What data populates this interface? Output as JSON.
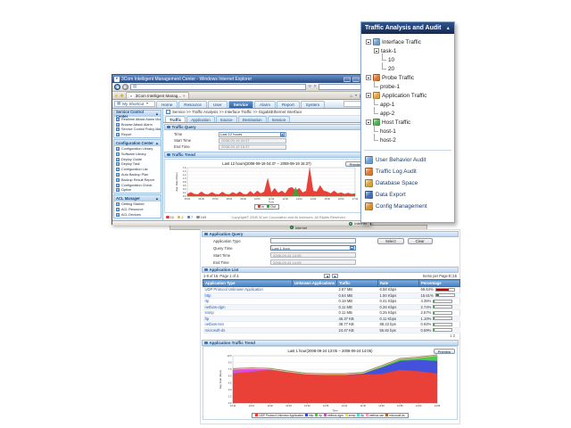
{
  "window": {
    "title": "3Com Intelligent Management Center - Windows Internet Explorer",
    "tab_title": "3Com Intelligent Manag...",
    "tab_close": "×",
    "shortcut_label": "My Shortcut",
    "nav_tabs": [
      {
        "label": "Home",
        "active": false
      },
      {
        "label": "Resource",
        "active": false
      },
      {
        "label": "User",
        "active": false
      },
      {
        "label": "Service",
        "active": true
      },
      {
        "label": "Alarm",
        "active": false
      },
      {
        "label": "Report",
        "active": false
      },
      {
        "label": "System",
        "active": false
      }
    ],
    "breadcrumb": "Service >> Traffic Analysis >> Interface Traffic >> GigabitEthernet Interface",
    "status_zone": "Internet"
  },
  "sidebar": {
    "panels": [
      {
        "title": "Service Control Center",
        "items": [
          "Realtime Attack Alarm Monitoring",
          "Browse Attack Alarm",
          "Service Control Policy Management",
          "Report"
        ]
      },
      {
        "title": "Configuration Center",
        "items": [
          "Configuration Library",
          "Software Library",
          "Deploy Guide",
          "Deploy Task",
          "Configuration List",
          "Auto Backup Plan",
          "Backup Result Report",
          "Configuration Check",
          "Option"
        ]
      },
      {
        "title": "ACL Manager",
        "items": [
          "Getting Started",
          "ACL Resource",
          "ACL Devices"
        ]
      }
    ]
  },
  "traffic_page": {
    "tabs": [
      {
        "label": "Traffic",
        "active": true
      },
      {
        "label": "Application",
        "active": false
      },
      {
        "label": "Source",
        "active": false
      },
      {
        "label": "Destination",
        "active": false
      },
      {
        "label": "Session",
        "active": false
      }
    ],
    "query_section_title": "Traffic Query",
    "fields": [
      {
        "label": "Time",
        "type": "select",
        "value": "Last 12 hours"
      },
      {
        "label": "Start Time",
        "type": "text",
        "value": "2008-09-19 04:37"
      },
      {
        "label": "End Time",
        "type": "text",
        "value": "2008-09-19 16:37"
      }
    ],
    "trend_section_title": "Traffic Trend",
    "preview_button": "Preview",
    "alarm_counts": [
      {
        "name": "critical",
        "color": "#d43c2f",
        "count": "16"
      },
      {
        "name": "major",
        "color": "#f2a93b",
        "count": "2"
      },
      {
        "name": "minor",
        "color": "#3f78c8",
        "count": "7"
      },
      {
        "name": "info",
        "color": "#8a8a8a",
        "count": "169"
      }
    ],
    "copyright": "Copyright© 2008 3Com Corporation and its licensors. All Rights Reserved."
  },
  "panel": {
    "title": "Traffic Analysis and Audit",
    "tree": [
      {
        "label": "Interface Traffic",
        "icon": "interface-traffic-icon",
        "color": "#6d9fd4",
        "children": [
          {
            "label": "task-1",
            "children": [
              {
                "label": "10"
              },
              {
                "label": "20"
              }
            ]
          }
        ]
      },
      {
        "label": "Probe Traffic",
        "icon": "probe-traffic-icon",
        "color": "#e2762a",
        "children": [
          {
            "label": "probe-1"
          }
        ]
      },
      {
        "label": "Application Traffic",
        "icon": "application-traffic-icon",
        "color": "#e8a23a",
        "children": [
          {
            "label": "app-1"
          },
          {
            "label": "app-2"
          }
        ]
      },
      {
        "label": "Host Traffic",
        "icon": "host-traffic-icon",
        "color": "#4fae4f",
        "children": [
          {
            "label": "host-1"
          },
          {
            "label": "host-2"
          }
        ]
      }
    ],
    "menu": [
      {
        "label": "User Behavior Audit",
        "icon": "user-behavior-audit-icon",
        "color": "#6d9fd4"
      },
      {
        "label": "Traffic Log Audit",
        "icon": "traffic-log-audit-icon",
        "color": "#e2762a"
      },
      {
        "label": "Database Space",
        "icon": "database-space-icon",
        "color": "#d9a23a"
      },
      {
        "label": "Data Export",
        "icon": "data-export-icon",
        "color": "#3f6fb7"
      },
      {
        "label": "Config Management",
        "icon": "config-management-icon",
        "color": "#d98f2a"
      }
    ]
  },
  "report": {
    "query_section_title": "Application Query",
    "app_type_label": "Application Type",
    "select_button": "Select",
    "clear_button": "Clear",
    "fields": [
      {
        "label": "Query Time",
        "type": "select",
        "value": "Last 1 hour"
      },
      {
        "label": "Start Time",
        "type": "text",
        "value": "2008-09-24 13:05"
      },
      {
        "label": "End Time",
        "type": "text",
        "value": "2008-09-24 14:05"
      }
    ],
    "list_section_title": "Application List",
    "pagination_left": "1-8 of 16. Page 1 of 2.",
    "items_per_page": "Items per Page:8 |15",
    "page_links": "1 2",
    "columns": [
      "Application Type",
      "Unknown Applications",
      "Traffic",
      "Rate",
      "Percentage"
    ],
    "rows": [
      {
        "app": "UDP Protocol Unknown Application",
        "unknown": "",
        "traffic": "2.87 MB",
        "rate": "6.58 Kbps",
        "pct": "69.64%",
        "pct_val": 69.64,
        "bar_color": "#c00000"
      },
      {
        "app": "http",
        "unknown": "",
        "traffic": "0.64 MB",
        "rate": "1.50 Kbps",
        "pct": "15.61%",
        "pct_val": 15.61,
        "bar_color": "#2e8b2e"
      },
      {
        "app": "rtp",
        "unknown": "",
        "traffic": "0.18 MB",
        "rate": "0.41 Kbps",
        "pct": "4.35%",
        "pct_val": 4.35,
        "bar_color": "#2e8b2e"
      },
      {
        "app": "netbios-dgm",
        "unknown": "",
        "traffic": "0.11 MB",
        "rate": "0.26 Kbps",
        "pct": "2.74%",
        "pct_val": 2.74,
        "bar_color": "#2e8b2e"
      },
      {
        "app": "snmp",
        "unknown": "",
        "traffic": "0.11 MB",
        "rate": "0.25 Kbps",
        "pct": "2.57%",
        "pct_val": 2.57,
        "bar_color": "#2e8b2e"
      },
      {
        "app": "ftp",
        "unknown": "",
        "traffic": "46.37 KB",
        "rate": "0.11 Kbps",
        "pct": "1.10%",
        "pct_val": 1.1,
        "bar_color": "#2e8b2e"
      },
      {
        "app": "netbios-ssn",
        "unknown": "",
        "traffic": "38.77 KB",
        "rate": "88.23 bps",
        "pct": "0.92%",
        "pct_val": 0.92,
        "bar_color": "#2e8b2e"
      },
      {
        "app": "microsoft-ds",
        "unknown": "",
        "traffic": "24.47 KB",
        "rate": "55.82 bps",
        "pct": "0.59%",
        "pct_val": 0.59,
        "bar_color": "#2e8b2e"
      }
    ],
    "trend_section_title": "Application Traffic Trend",
    "preview_button": "Preview"
  },
  "chart_data": [
    {
      "id": "traffic-trend",
      "type": "area",
      "title": "Last 12 hours(2008-09-19 04:37 -- 2008-09-19 16:37)",
      "xlabel": "Time",
      "ylabel": "Avg. Rate (Kbps)",
      "ylim": [
        0,
        1.6
      ],
      "y_ticks": [
        0.0,
        0.2,
        0.4,
        0.6,
        0.8,
        1.0,
        1.2,
        1.4,
        1.6
      ],
      "x_ticks": [
        "05:00",
        "06:00",
        "07:00",
        "08:00",
        "09:00",
        "10:00",
        "11:00",
        "12:00",
        "13:00",
        "14:00",
        "15:00",
        "16:00",
        "17:00"
      ],
      "grid": true,
      "legend_position": "bottom",
      "series": [
        {
          "name": "In",
          "color": "#e8372d",
          "values": [
            0.12,
            0.22,
            0.12,
            0.1,
            0.25,
            0.12,
            0.1,
            0.22,
            0.12,
            0.1,
            0.24,
            0.12,
            0.1,
            0.22,
            0.12,
            0.25,
            0.12,
            0.1,
            0.28,
            0.12,
            0.3,
            0.15,
            0.25,
            1.0,
            0.2,
            0.45,
            0.18,
            0.3,
            0.15,
            0.45,
            0.5,
            0.3,
            0.45,
            0.2,
            0.3,
            1.6,
            0.3,
            0.25,
            0.6,
            0.3,
            0.25,
            0.15,
            0.3,
            0.15,
            0.2,
            0.12,
            0.18,
            0.12,
            0.15
          ]
        },
        {
          "name": "Out",
          "color": "#3aa53a",
          "values": [
            0,
            0,
            0,
            0,
            0,
            0,
            0,
            0,
            0,
            0,
            0,
            0,
            0,
            0,
            0,
            0,
            0,
            0,
            0,
            0,
            0,
            0,
            0,
            0,
            0,
            0,
            0,
            0,
            0,
            0,
            0,
            0.5,
            0,
            0,
            0,
            0,
            0,
            0,
            0,
            0,
            0,
            0,
            0,
            0,
            0,
            0,
            0,
            0,
            0
          ]
        }
      ]
    },
    {
      "id": "application-traffic-trend",
      "type": "stacked-area",
      "title": "Last 1 hour(2008-09-24 13:05 -- 2008-09-24 14:05)",
      "xlabel": "Time",
      "ylabel": "Avg. Rate (Kbps)",
      "ylim": [
        0,
        10.5
      ],
      "y_ticks": [
        0.0,
        1.5,
        3.0,
        4.5,
        6.0,
        7.5,
        9.0,
        10.5
      ],
      "x_ticks": [
        "13:10",
        "13:15",
        "13:20",
        "13:25",
        "13:30",
        "13:35",
        "13:40",
        "13:45",
        "13:50",
        "13:55",
        "14:00",
        "14:05"
      ],
      "grid": true,
      "legend_position": "bottom",
      "series": [
        {
          "name": "UDP Protocol Unknown Application",
          "color": "#e8372d",
          "values": [
            6.6,
            7.0,
            7.4,
            6.9,
            6.4,
            6.3,
            6.3,
            6.35,
            6.5,
            7.4,
            7.1,
            6.6
          ]
        },
        {
          "name": "http",
          "color": "#3a48d8",
          "values": [
            0,
            0,
            0,
            0,
            0,
            0,
            0,
            0.2,
            1.4,
            2.0,
            2.5,
            2.8
          ]
        },
        {
          "name": "rtp",
          "color": "#3ecb3e",
          "values": [
            0,
            0,
            0,
            0,
            0,
            0,
            0,
            0.05,
            0.2,
            0.3,
            0.4,
            1.1
          ]
        },
        {
          "name": "netbios-dgm",
          "color": "#e040e0",
          "values": [
            0.85,
            0.6,
            0.1,
            0,
            0,
            0,
            0,
            0,
            0,
            0,
            0,
            0
          ]
        },
        {
          "name": "snmp",
          "color": "#e8e84a",
          "values": [
            0.12,
            0.12,
            0.12,
            0.12,
            0.12,
            0.12,
            0.12,
            0.12,
            0.12,
            0.12,
            0.12,
            0.12
          ]
        },
        {
          "name": "ftp",
          "color": "#4ad8d8",
          "values": [
            0.05,
            0.05,
            0.05,
            0.05,
            0.05,
            0.05,
            0.05,
            0.05,
            0.05,
            0.05,
            0.05,
            0.05
          ]
        },
        {
          "name": "netbios-ssn",
          "color": "#f4a0c0",
          "values": [
            0.04,
            0.04,
            0.04,
            0.04,
            0.04,
            0.04,
            0.04,
            0.04,
            0.04,
            0.04,
            0.04,
            0.04
          ]
        },
        {
          "name": "microsoft-ds",
          "color": "#9a6a3a",
          "values": [
            0.04,
            0.04,
            0.04,
            0.04,
            0.04,
            0.04,
            0.04,
            0.04,
            0.04,
            0.04,
            0.04,
            0.04
          ]
        }
      ]
    }
  ]
}
